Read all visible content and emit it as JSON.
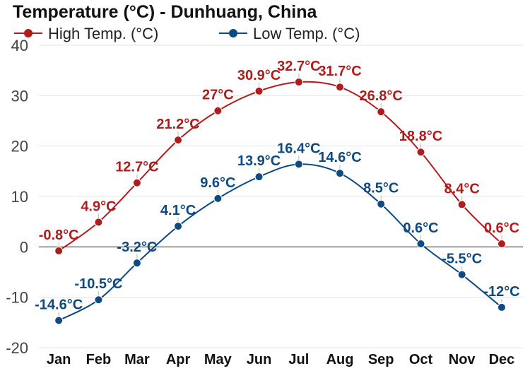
{
  "chart_data": {
    "type": "line",
    "title": "Temperature (°C) - Dunhuang, China",
    "categories": [
      "Jan",
      "Feb",
      "Mar",
      "Apr",
      "May",
      "Jun",
      "Jul",
      "Aug",
      "Sep",
      "Oct",
      "Nov",
      "Dec"
    ],
    "x": [
      15,
      45,
      74,
      105,
      135,
      166,
      196,
      227,
      258,
      288,
      319,
      349
    ],
    "series": [
      {
        "name": "High Temp. (°C)",
        "color": "#b01c1c",
        "values": [
          -0.8,
          4.9,
          12.7,
          21.2,
          27,
          30.9,
          32.7,
          31.7,
          26.8,
          18.8,
          8.4,
          0.6
        ],
        "labels": [
          "-0.8°C",
          "4.9°C",
          "12.7°C",
          "21.2°C",
          "27°C",
          "30.9°C",
          "32.7°C",
          "31.7°C",
          "26.8°C",
          "18.8°C",
          "8.4°C",
          "0.6°C"
        ]
      },
      {
        "name": "Low Temp. (°C)",
        "color": "#0d4a82",
        "values": [
          -14.6,
          -10.5,
          -3.2,
          4.1,
          9.6,
          13.9,
          16.4,
          14.6,
          8.5,
          0.6,
          -5.5,
          -12
        ],
        "labels": [
          "-14.6°C",
          "-10.5°C",
          "-3.2°C",
          "4.1°C",
          "9.6°C",
          "13.9°C",
          "16.4°C",
          "14.6°C",
          "8.5°C",
          "0.6°C",
          "-5.5°C",
          "-12°C"
        ]
      }
    ],
    "yticks": [
      -20,
      -10,
      0,
      10,
      20,
      30,
      40
    ],
    "ylim": [
      -20,
      40
    ],
    "xlim": [
      0,
      365
    ],
    "grid": true,
    "legend": "top-left",
    "xlabel": "",
    "ylabel": ""
  }
}
